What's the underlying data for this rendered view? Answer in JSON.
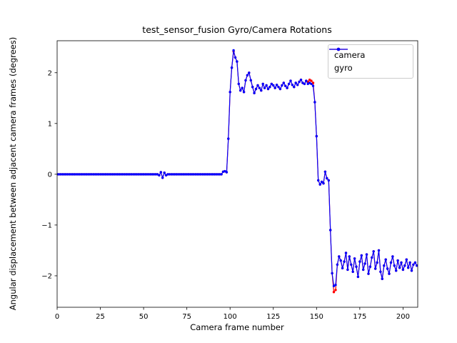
{
  "chart_data": {
    "type": "line",
    "title": "test_sensor_fusion Gyro/Camera Rotations",
    "xlabel": "Camera frame number",
    "ylabel": "Angular displacement between adjacent camera frames (degrees)",
    "xlim": [
      0,
      208.5
    ],
    "ylim": [
      -2.62,
      2.63
    ],
    "xticks": [
      0,
      25,
      50,
      75,
      100,
      125,
      150,
      175,
      200
    ],
    "xtick_labels": [
      "0",
      "25",
      "50",
      "75",
      "100",
      "125",
      "150",
      "175",
      "200"
    ],
    "yticks": [
      -2,
      -1,
      0,
      1,
      2
    ],
    "ytick_labels": [
      "−2",
      "−1",
      "0",
      "1",
      "2"
    ],
    "grid": false,
    "marker": "dot",
    "legend_position": "upper right",
    "x_start": 0,
    "x_step": 1,
    "series": [
      {
        "name": "camera",
        "color": "#ff0000",
        "values": [
          0,
          0,
          0,
          0,
          0,
          0,
          0,
          0,
          0,
          0,
          0,
          0,
          0,
          0,
          0,
          0,
          0,
          0,
          0,
          0,
          0,
          0,
          0,
          0,
          0,
          0,
          0,
          0,
          0,
          0,
          0,
          0,
          0,
          0,
          0,
          0,
          0,
          0,
          0,
          0,
          0,
          0,
          0,
          0,
          0,
          0,
          0,
          0,
          0,
          0,
          0,
          0,
          0,
          0,
          0,
          0,
          0,
          0,
          0,
          -0.02,
          0.04,
          -0.07,
          0.03,
          -0.02,
          0,
          0,
          0,
          0,
          0,
          0,
          0,
          0,
          0,
          0,
          0,
          0,
          0,
          0,
          0,
          0,
          0,
          0,
          0,
          0,
          0,
          0,
          0,
          0,
          0,
          0,
          0,
          0,
          0,
          0,
          0,
          0,
          0.05,
          0.06,
          0.04,
          0.7,
          1.62,
          2.1,
          2.42,
          2.3,
          2.22,
          1.78,
          1.65,
          1.7,
          1.62,
          1.85,
          1.95,
          2.0,
          1.85,
          1.72,
          1.6,
          1.68,
          1.75,
          1.7,
          1.65,
          1.78,
          1.7,
          1.75,
          1.68,
          1.72,
          1.78,
          1.75,
          1.7,
          1.76,
          1.72,
          1.68,
          1.75,
          1.8,
          1.74,
          1.7,
          1.78,
          1.84,
          1.76,
          1.72,
          1.8,
          1.76,
          1.82,
          1.86,
          1.8,
          1.78,
          1.84,
          1.82,
          1.86,
          1.84,
          1.8,
          1.42,
          0.75,
          -0.12,
          -0.2,
          -0.15,
          -0.18,
          0.05,
          -0.08,
          -0.12,
          -1.1,
          -1.95,
          -2.32,
          -2.28,
          -1.78,
          -1.62,
          -1.7,
          -1.85,
          -1.72,
          -1.55,
          -1.88,
          -1.62,
          -1.78,
          -1.92,
          -1.66,
          -1.82,
          -2.02,
          -1.72,
          -1.6,
          -1.88,
          -1.76,
          -1.58,
          -1.96,
          -1.82,
          -1.64,
          -1.52,
          -1.86,
          -1.74,
          -1.5,
          -1.92,
          -2.06,
          -1.8,
          -1.68,
          -1.86,
          -1.96,
          -1.74,
          -1.62,
          -1.8,
          -1.9,
          -1.7,
          -1.84,
          -1.74,
          -1.88,
          -1.8,
          -1.68,
          -1.84,
          -1.74,
          -1.9,
          -1.78,
          -1.74,
          -1.8
        ]
      },
      {
        "name": "gyro",
        "color": "#0000ff",
        "values": [
          0,
          0,
          0,
          0,
          0,
          0,
          0,
          0,
          0,
          0,
          0,
          0,
          0,
          0,
          0,
          0,
          0,
          0,
          0,
          0,
          0,
          0,
          0,
          0,
          0,
          0,
          0,
          0,
          0,
          0,
          0,
          0,
          0,
          0,
          0,
          0,
          0,
          0,
          0,
          0,
          0,
          0,
          0,
          0,
          0,
          0,
          0,
          0,
          0,
          0,
          0,
          0,
          0,
          0,
          0,
          0,
          0,
          0,
          0,
          -0.02,
          0.04,
          -0.07,
          0.03,
          -0.02,
          0,
          0,
          0,
          0,
          0,
          0,
          0,
          0,
          0,
          0,
          0,
          0,
          0,
          0,
          0,
          0,
          0,
          0,
          0,
          0,
          0,
          0,
          0,
          0,
          0,
          0,
          0,
          0,
          0,
          0,
          0,
          0,
          0.05,
          0.06,
          0.04,
          0.7,
          1.62,
          2.1,
          2.44,
          2.3,
          2.22,
          1.78,
          1.65,
          1.7,
          1.62,
          1.85,
          1.95,
          2.0,
          1.85,
          1.72,
          1.6,
          1.68,
          1.75,
          1.7,
          1.65,
          1.78,
          1.7,
          1.75,
          1.68,
          1.72,
          1.78,
          1.75,
          1.7,
          1.76,
          1.72,
          1.68,
          1.75,
          1.8,
          1.74,
          1.7,
          1.78,
          1.84,
          1.76,
          1.72,
          1.8,
          1.76,
          1.82,
          1.86,
          1.8,
          1.78,
          1.84,
          1.78,
          1.8,
          1.78,
          1.74,
          1.42,
          0.75,
          -0.12,
          -0.2,
          -0.15,
          -0.18,
          0.05,
          -0.08,
          -0.12,
          -1.1,
          -1.95,
          -2.2,
          -2.18,
          -1.78,
          -1.62,
          -1.7,
          -1.85,
          -1.72,
          -1.55,
          -1.88,
          -1.62,
          -1.78,
          -1.92,
          -1.66,
          -1.82,
          -2.02,
          -1.72,
          -1.6,
          -1.88,
          -1.76,
          -1.58,
          -1.96,
          -1.82,
          -1.64,
          -1.52,
          -1.86,
          -1.74,
          -1.5,
          -1.92,
          -2.06,
          -1.8,
          -1.68,
          -1.86,
          -1.96,
          -1.74,
          -1.62,
          -1.8,
          -1.9,
          -1.7,
          -1.84,
          -1.74,
          -1.88,
          -1.8,
          -1.68,
          -1.84,
          -1.74,
          -1.9,
          -1.78,
          -1.74,
          -1.8
        ]
      }
    ]
  },
  "legend": {
    "entries": [
      {
        "label": "camera",
        "color": "#ff0000"
      },
      {
        "label": "gyro",
        "color": "#0000ff"
      }
    ]
  }
}
